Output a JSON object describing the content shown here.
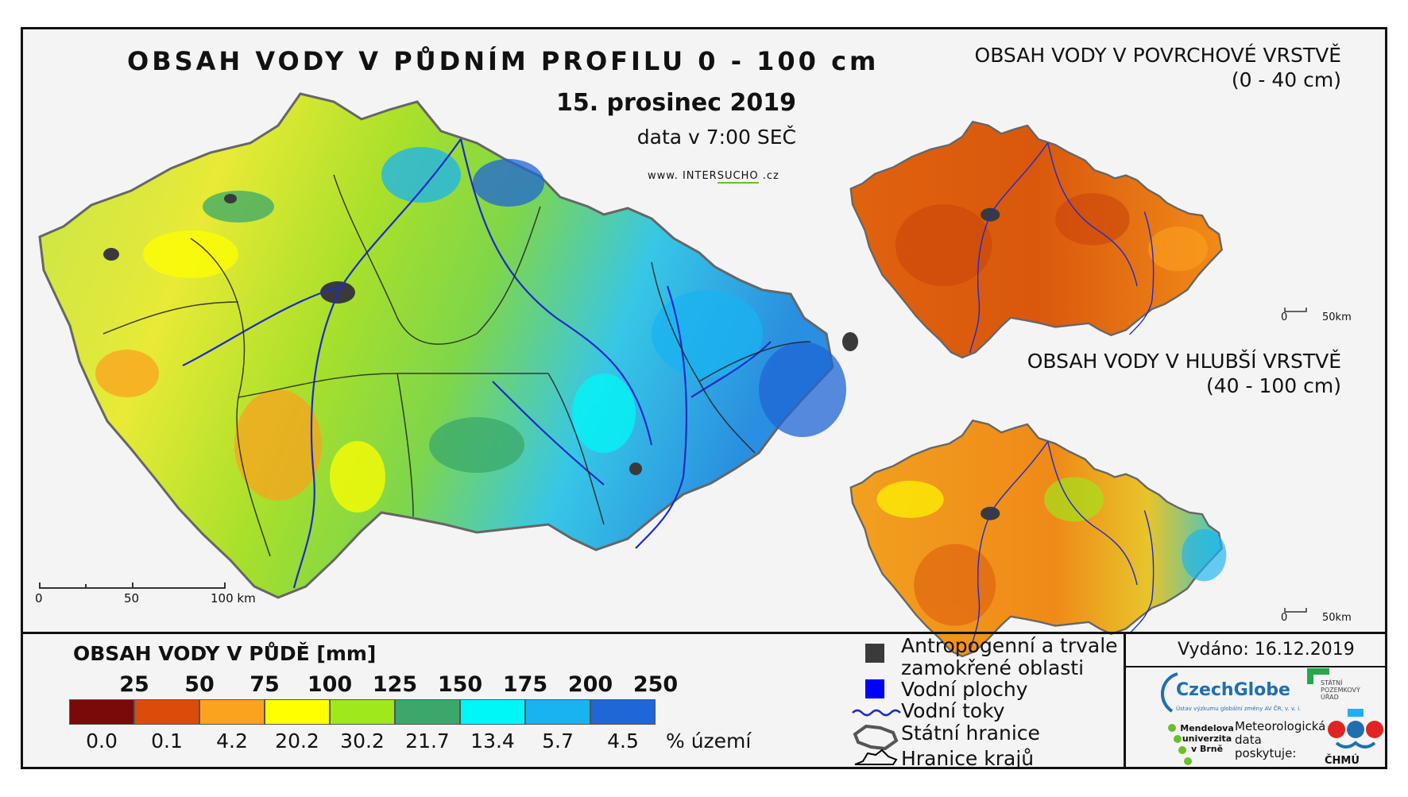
{
  "main_map": {
    "title": "OBSAH VODY V PŮDNÍM PROFILU 0 - 100 cm",
    "date": "15. prosinec 2019",
    "time": "data v 7:00 SEČ",
    "url_prefix": "www. INTER",
    "url_highlight": "SUCHO",
    "url_suffix": " .cz",
    "scale_labels": [
      "0",
      "50",
      "100 km"
    ]
  },
  "surface_map": {
    "title_line1": "OBSAH VODY V POVRCHOVÉ VRSTVĚ",
    "title_line2": "(0 - 40 cm)",
    "scale_labels": [
      "0",
      "50km"
    ]
  },
  "deep_map": {
    "title_line1": "OBSAH VODY V HLUBŠÍ VRSTVĚ",
    "title_line2": "(40 - 100 cm)",
    "scale_labels": [
      "0",
      "50km"
    ]
  },
  "legend": {
    "title": "OBSAH VODY V PŮDĚ [mm]",
    "breaks": [
      "25",
      "50",
      "75",
      "100",
      "125",
      "150",
      "175",
      "200",
      "250"
    ],
    "colors": [
      "#7a0a0a",
      "#dc4b0a",
      "#fba21f",
      "#ffff00",
      "#9ee81b",
      "#3aa86a",
      "#00f7f7",
      "#19b3f2",
      "#1f66d6"
    ],
    "percent_values": [
      "0.0",
      "0.1",
      "4.2",
      "20.2",
      "30.2",
      "21.7",
      "13.4",
      "5.7",
      "4.5"
    ],
    "percent_label": "% území"
  },
  "symbols": {
    "items": [
      {
        "label": "Antropogenní a trvale",
        "label2": "zamokřené oblasti",
        "icon": "dark-square-icon",
        "color": "#3a3a3a"
      },
      {
        "label": "Vodní plochy",
        "icon": "blue-square-icon",
        "color": "#0000ff"
      },
      {
        "label": "Vodní toky",
        "icon": "river-line-icon",
        "color": "#1d2cc8"
      },
      {
        "label": "Státní hranice",
        "icon": "state-border-icon",
        "color": "#444444"
      },
      {
        "label": "Hranice krajů",
        "icon": "region-border-icon",
        "color": "#000000"
      }
    ]
  },
  "footer": {
    "issued": "Vydáno: 16.12.2019",
    "czechglobe": "CzechGlobe",
    "czechglobe_sub": "Ústav výzkumu globální změny AV ČR, v. v. i.",
    "spu": "STÁTNÍ POZEMKOVÝ ÚŘAD",
    "mendel": "Mendelova univerzita v Brně",
    "meteo": "Meteorologická data poskytuje:",
    "chmu": "ČHMÚ"
  }
}
